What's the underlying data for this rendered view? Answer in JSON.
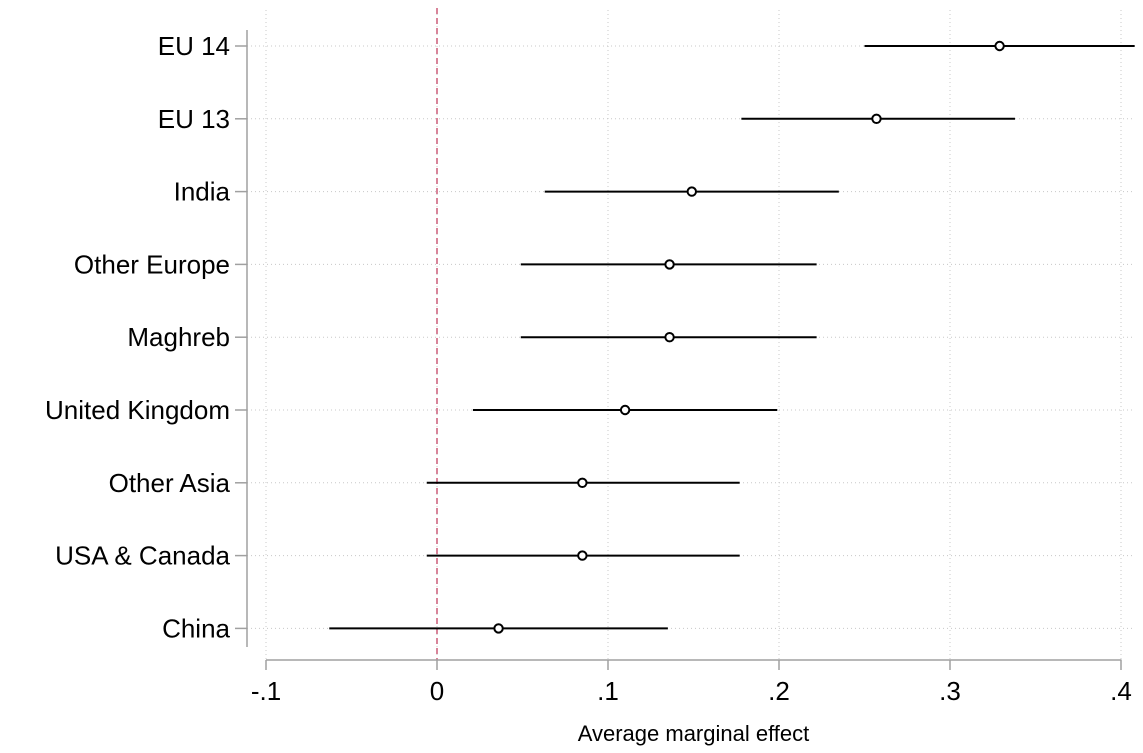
{
  "chart_data": {
    "type": "scatter",
    "subtype": "coefficient-plot",
    "title": "",
    "xlabel": "Average marginal effect",
    "ylabel": "",
    "xlim": [
      -0.1,
      0.41
    ],
    "xticks": [
      {
        "value": -0.1,
        "label": "-.1"
      },
      {
        "value": 0,
        "label": "0"
      },
      {
        "value": 0.1,
        "label": ".1"
      },
      {
        "value": 0.2,
        "label": ".2"
      },
      {
        "value": 0.3,
        "label": ".3"
      },
      {
        "value": 0.4,
        "label": ".4"
      }
    ],
    "reference_line": {
      "x": 0,
      "style": "dashed",
      "color": "#c8506e"
    },
    "grid": true,
    "categories": [
      "EU 14",
      "EU 13",
      "India",
      "Other Europe",
      "Maghreb",
      "United Kingdom",
      "Other Asia",
      "USA & Canada",
      "China"
    ],
    "estimates": [
      0.329,
      0.257,
      0.149,
      0.136,
      0.136,
      0.11,
      0.085,
      0.085,
      0.036
    ],
    "ci_lower": [
      0.25,
      0.178,
      0.063,
      0.049,
      0.049,
      0.021,
      -0.006,
      -0.006,
      -0.063
    ],
    "ci_upper": [
      0.408,
      0.338,
      0.235,
      0.222,
      0.222,
      0.199,
      0.177,
      0.177,
      0.135
    ],
    "colors": {
      "line": "#000000",
      "grid": "#c8c8c8",
      "axis": "#a0a0a0"
    }
  }
}
